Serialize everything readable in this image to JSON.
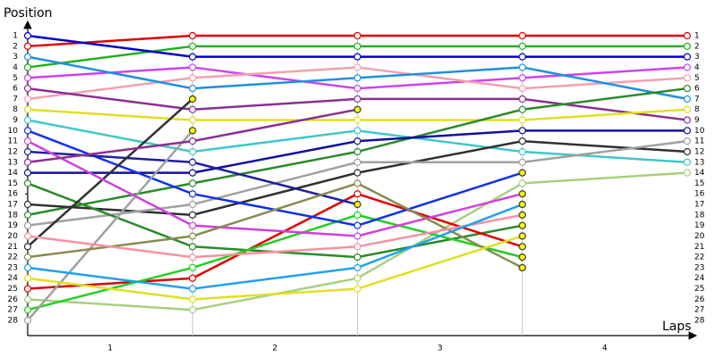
{
  "chart_data": {
    "type": "line",
    "title": "Position",
    "x_label": "Laps",
    "x": [
      0,
      1,
      2,
      3,
      4
    ],
    "xlim": [
      0,
      4
    ],
    "xticks": [
      {
        "value": 0.5,
        "label": "1"
      },
      {
        "value": 1.5,
        "label": "2"
      },
      {
        "value": 2.5,
        "label": "3"
      },
      {
        "value": 3.5,
        "label": "4"
      }
    ],
    "ylim": [
      1,
      28
    ],
    "yticks": [
      1,
      2,
      3,
      4,
      5,
      6,
      7,
      8,
      9,
      10,
      11,
      12,
      13,
      14,
      15,
      16,
      17,
      18,
      19,
      20,
      21,
      22,
      23,
      24,
      25,
      26,
      27,
      28
    ],
    "inverted_y": true,
    "series": [
      {
        "color": "#e00000",
        "values": [
          2,
          1,
          1,
          1,
          1
        ]
      },
      {
        "color": "#20b020",
        "values": [
          4,
          2,
          2,
          2,
          2
        ]
      },
      {
        "color": "#0000cc",
        "values": [
          1,
          3,
          3,
          3,
          3
        ]
      },
      {
        "color": "#cc44ee",
        "values": [
          5,
          4,
          6,
          5,
          4
        ]
      },
      {
        "color": "#f4a0b0",
        "values": [
          7,
          5,
          4,
          6,
          5
        ]
      },
      {
        "color": "#2090e0",
        "values": [
          3,
          6,
          5,
          4,
          7
        ]
      },
      {
        "color": "#8a3090",
        "values": [
          6,
          8,
          7,
          7,
          9
        ]
      },
      {
        "color": "#e0e020",
        "values": [
          8,
          9,
          9,
          9,
          8
        ]
      },
      {
        "color": "#40c8c8",
        "values": [
          9,
          12,
          10,
          12,
          13
        ]
      },
      {
        "color": "#2a8a2a",
        "values": [
          18,
          15,
          12,
          8,
          6
        ]
      },
      {
        "color": "#1010a0",
        "values": [
          14,
          14,
          11,
          10,
          10
        ]
      },
      {
        "color": "#303030",
        "values": [
          17,
          18,
          14,
          11,
          12
        ]
      },
      {
        "color": "#a0a0a0",
        "values": [
          19,
          17,
          13,
          13,
          11
        ]
      },
      {
        "color": "#a8d080",
        "values": [
          26,
          27,
          24,
          15,
          14
        ]
      },
      {
        "color": "#2a8a2a",
        "values": [
          15,
          21,
          22,
          19,
          null
        ]
      },
      {
        "color": "#e00000",
        "values": [
          25,
          24,
          16,
          21,
          null
        ]
      },
      {
        "color": "#20d020",
        "values": [
          27,
          23,
          18,
          22,
          null
        ]
      },
      {
        "color": "#1030f0",
        "values": [
          10,
          16,
          19,
          14,
          null
        ]
      },
      {
        "color": "#2020a0",
        "values": [
          12,
          13,
          17,
          null,
          null
        ]
      },
      {
        "color": "#303030",
        "values": [
          21,
          7,
          null,
          null,
          null
        ]
      },
      {
        "color": "#a0a0a0",
        "values": [
          28,
          10,
          null,
          null,
          null
        ]
      },
      {
        "color": "#d040e0",
        "values": [
          11,
          19,
          20,
          16,
          null
        ]
      },
      {
        "color": "#8a3090",
        "values": [
          13,
          11,
          8,
          null,
          null
        ]
      },
      {
        "color": "#8a8a50",
        "values": [
          22,
          20,
          15,
          23,
          null
        ]
      },
      {
        "color": "#f890a0",
        "values": [
          20,
          22,
          21,
          18,
          null
        ]
      },
      {
        "color": "#20a0f0",
        "values": [
          23,
          25,
          23,
          17,
          null
        ]
      },
      {
        "color": "#e0e020",
        "values": [
          24,
          26,
          25,
          20,
          null
        ]
      }
    ]
  }
}
